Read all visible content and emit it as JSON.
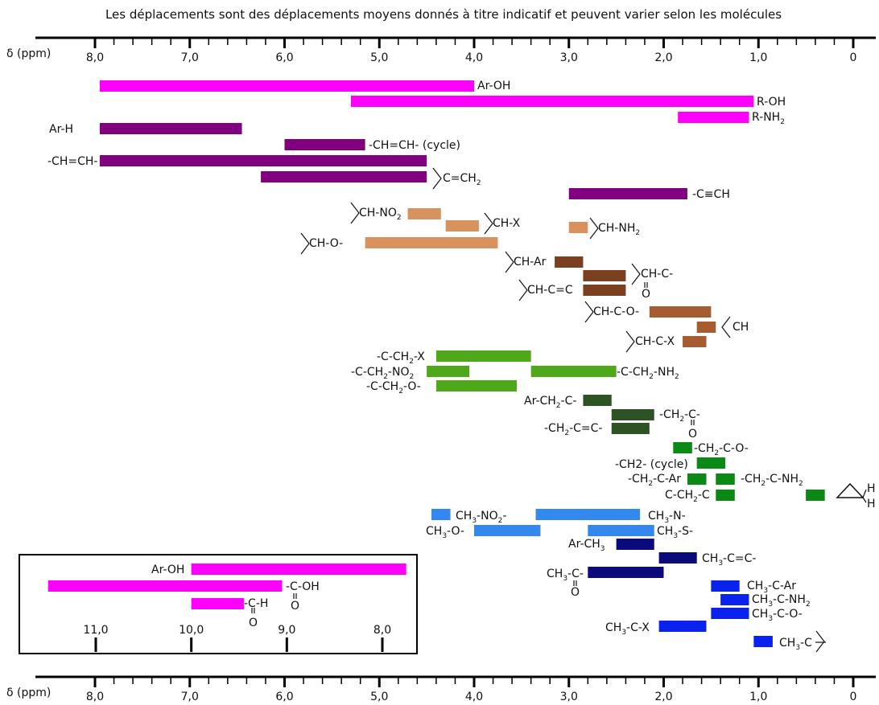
{
  "caption": "Les déplacements sont des déplacements moyens donnés à titre indicatif et peuvent varier selon les molécules",
  "axis_label": "δ (ppm)",
  "colors": {
    "magenta": "#ff00ff",
    "purple": "#800080",
    "salmon": "#d7925e",
    "brown": "#7a4020",
    "brown_light": "#a65c30",
    "lime": "#4ea81a",
    "darkgreen": "#2d5224",
    "green": "#0a8a14",
    "lightblue": "#3388ee",
    "navy": "#0a0a7a",
    "blue": "#0a22ee"
  },
  "chart_data": [
    {
      "type": "range-bar",
      "title": "",
      "xlabel": "δ (ppm)",
      "x_reversed": true,
      "xlim": [
        0,
        8
      ],
      "ticks": [
        "8,0",
        "7,0",
        "6,0",
        "5,0",
        "4,0",
        "3,0",
        "2,0",
        "1,0",
        "0"
      ],
      "tick_values": [
        8,
        7,
        6,
        5,
        4,
        3,
        2,
        1,
        0
      ],
      "grid": false,
      "bars": [
        {
          "label": "Ar-OH",
          "from": 7.95,
          "to": 4.0,
          "color": "magenta"
        },
        {
          "label": "R-OH",
          "from": 5.3,
          "to": 1.05,
          "color": "magenta"
        },
        {
          "label": "R-NH₂",
          "from": 1.85,
          "to": 1.1,
          "color": "magenta"
        },
        {
          "label": "Ar-H",
          "from": 7.95,
          "to": 6.45,
          "color": "purple"
        },
        {
          "label": "-CH=CH- (cycle)",
          "from": 6.0,
          "to": 5.15,
          "color": "purple"
        },
        {
          "label": "-CH=CH-",
          "from": 7.95,
          "to": 4.5,
          "color": "purple"
        },
        {
          "label": "C=CH₂",
          "from": 6.25,
          "to": 4.5,
          "color": "purple"
        },
        {
          "label": "-C≡CH",
          "from": 3.0,
          "to": 1.75,
          "color": "purple"
        },
        {
          "label": "CH-NO₂",
          "from": 4.7,
          "to": 4.35,
          "color": "salmon"
        },
        {
          "label": "CH-X",
          "from": 4.3,
          "to": 3.95,
          "color": "salmon"
        },
        {
          "label": "CH-NH₂",
          "from": 3.0,
          "to": 2.8,
          "color": "salmon"
        },
        {
          "label": "CH-O-",
          "from": 5.15,
          "to": 3.75,
          "color": "salmon"
        },
        {
          "label": "CH-Ar",
          "from": 3.15,
          "to": 2.85,
          "color": "brown"
        },
        {
          "label": "CH-C(=O)-",
          "from": 2.85,
          "to": 2.4,
          "color": "brown"
        },
        {
          "label": "CH-C=C",
          "from": 2.85,
          "to": 2.4,
          "color": "brown"
        },
        {
          "label": "CH-C-O-",
          "from": 2.15,
          "to": 1.5,
          "color": "brown_light"
        },
        {
          "label": "CH (cycloalkyl)",
          "from": 1.65,
          "to": 1.45,
          "color": "brown_light"
        },
        {
          "label": "CH-C-X",
          "from": 1.8,
          "to": 1.55,
          "color": "brown_light"
        },
        {
          "label": "-C-CH₂-X",
          "from": 4.4,
          "to": 3.4,
          "color": "lime"
        },
        {
          "label": "-C-CH₂-NO₂",
          "from": 4.5,
          "to": 4.05,
          "color": "lime"
        },
        {
          "label": "-C-CH₂-NH₂",
          "from": 3.4,
          "to": 2.5,
          "color": "lime"
        },
        {
          "label": "-C-CH₂-O-",
          "from": 4.4,
          "to": 3.55,
          "color": "lime"
        },
        {
          "label": "Ar-CH₂-C-",
          "from": 2.85,
          "to": 2.55,
          "color": "darkgreen"
        },
        {
          "label": "-CH₂-C(=O)-",
          "from": 2.55,
          "to": 2.1,
          "color": "darkgreen"
        },
        {
          "label": "-CH₂-C=C-",
          "from": 2.55,
          "to": 2.15,
          "color": "darkgreen"
        },
        {
          "label": "-CH₂-C-O-",
          "from": 1.9,
          "to": 1.7,
          "color": "green"
        },
        {
          "label": "-CH2- (cycle)",
          "from": 1.65,
          "to": 1.35,
          "color": "green"
        },
        {
          "label": "-CH₂-C-Ar",
          "from": 1.75,
          "to": 1.55,
          "color": "green"
        },
        {
          "label": "-CH₂-C-NH₂",
          "from": 1.45,
          "to": 1.25,
          "color": "green"
        },
        {
          "label": "C-CH₂-C",
          "from": 1.45,
          "to": 1.25,
          "color": "green"
        },
        {
          "label": "cyclopropane CH₂",
          "from": 0.5,
          "to": 0.3,
          "color": "green"
        },
        {
          "label": "CH₃-NO₂-",
          "from": 4.45,
          "to": 4.25,
          "color": "lightblue"
        },
        {
          "label": "CH₃-N-",
          "from": 3.35,
          "to": 2.25,
          "color": "lightblue"
        },
        {
          "label": "CH₃-O-",
          "from": 4.0,
          "to": 3.3,
          "color": "lightblue"
        },
        {
          "label": "CH₃-S-",
          "from": 2.8,
          "to": 2.1,
          "color": "lightblue"
        },
        {
          "label": "Ar-CH₃",
          "from": 2.5,
          "to": 2.1,
          "color": "navy"
        },
        {
          "label": "CH₃-C=C-",
          "from": 2.05,
          "to": 1.65,
          "color": "navy"
        },
        {
          "label": "CH₃-C(=O)-",
          "from": 2.8,
          "to": 2.0,
          "color": "navy"
        },
        {
          "label": "CH₃-C-Ar",
          "from": 1.5,
          "to": 1.2,
          "color": "blue"
        },
        {
          "label": "CH₃-C-NH₂",
          "from": 1.4,
          "to": 1.1,
          "color": "blue"
        },
        {
          "label": "CH₃-C-O-",
          "from": 1.5,
          "to": 1.1,
          "color": "blue"
        },
        {
          "label": "CH₃-C-X",
          "from": 2.05,
          "to": 1.55,
          "color": "blue"
        },
        {
          "label": "CH₃-C (alkyl)",
          "from": 1.05,
          "to": 0.85,
          "color": "blue"
        }
      ]
    },
    {
      "type": "range-bar",
      "title": "",
      "xlabel": "",
      "x_reversed": true,
      "xlim": [
        7.8,
        11.8
      ],
      "ticks": [
        "11,0",
        "10,0",
        "9,0",
        "8,0"
      ],
      "tick_values": [
        11,
        10,
        9,
        8
      ],
      "grid": false,
      "bars": [
        {
          "label": "Ar-OH",
          "from": 10.0,
          "to": 7.75,
          "color": "magenta"
        },
        {
          "label": "-C(=O)-OH",
          "from": 11.5,
          "to": 9.05,
          "color": "magenta"
        },
        {
          "label": "-C(=O)-H",
          "from": 10.0,
          "to": 9.45,
          "color": "magenta"
        }
      ]
    }
  ],
  "labels": {
    "ar_oh": "Ar-OH",
    "r_oh": "R-OH",
    "r_nh2": "R-NH",
    "ar_h": "Ar-H",
    "ch_ch_cycle": "-CH=CH- (cycle)",
    "ch_ch": "-CH=CH-",
    "c_ch2": "C=CH",
    "alkyne": "-C≡CH",
    "ch_no2": "CH-NO",
    "ch_x": "CH-X",
    "ch_nh2": "CH-NH",
    "ch_o": "CH-O-",
    "ch_ar": "CH-Ar",
    "ch_c_carbonyl": "CH-C-",
    "o": "O",
    "ch_c_c": "CH-C=C",
    "ch_c_o": "CH-C-O-",
    "ch": "CH",
    "ch_c_x": "CH-C-X",
    "c_ch2_x": "-C-CH",
    "c_ch2_x_tail": "-X",
    "c_ch2_no2": "-C-CH",
    "c_ch2_no2_tail": "-NO",
    "c_ch2_nh2": "-C-CH",
    "c_ch2_nh2_tail": "-NH",
    "c_ch2_o": "-C-CH",
    "c_ch2_o_tail": "-O-",
    "ar_ch2_c": "Ar-CH",
    "ar_ch2_c_tail": "-C-",
    "ch2_c_carbonyl": "-CH",
    "ch2_c_carbonyl_tail": "-C-",
    "ch2_c_c": "-CH",
    "ch2_c_c_tail": "-C=C-",
    "ch2_c_o": "-CH",
    "ch2_c_o_tail": "-C-O-",
    "ch2_cycle": "-CH2- (cycle)",
    "ch2_c_ar": "-CH",
    "ch2_c_ar_tail": "-C-Ar",
    "ch2_c_nh2": "-CH",
    "ch2_c_nh2_tail": "-C-NH",
    "c_ch2_c": "C-CH",
    "c_ch2_c_tail": "-C",
    "h": "H",
    "ch3_no2": "CH",
    "ch3_no2_tail": "-NO",
    "ch3_n": "CH",
    "ch3_n_tail": "-N-",
    "ch3_o": "CH",
    "ch3_o_tail": "-O-",
    "ch3_s": "CH",
    "ch3_s_tail": "-S-",
    "ar_ch3": "Ar-CH",
    "ch3_c_c": "CH",
    "ch3_c_c_tail": "-C=C-",
    "ch3_c_carbonyl": "CH",
    "ch3_c_carbonyl_tail": "-C-",
    "ch3_c_ar": "CH",
    "ch3_c_ar_tail": "-C-Ar",
    "ch3_c_nh2": "CH",
    "ch3_c_nh2_tail": "-C-NH",
    "ch3_c_o": "CH",
    "ch3_c_o_tail": "-C-O-",
    "ch3_c_x": "CH",
    "ch3_c_x_tail": "-C-X",
    "ch3_c_alkyl": "CH",
    "ch3_c_alkyl_tail": "-C",
    "sub2": "2",
    "sub3": "3",
    "inset_ar_oh": "Ar-OH",
    "inset_cooh": "-C-OH",
    "inset_cho": "-C-H"
  }
}
